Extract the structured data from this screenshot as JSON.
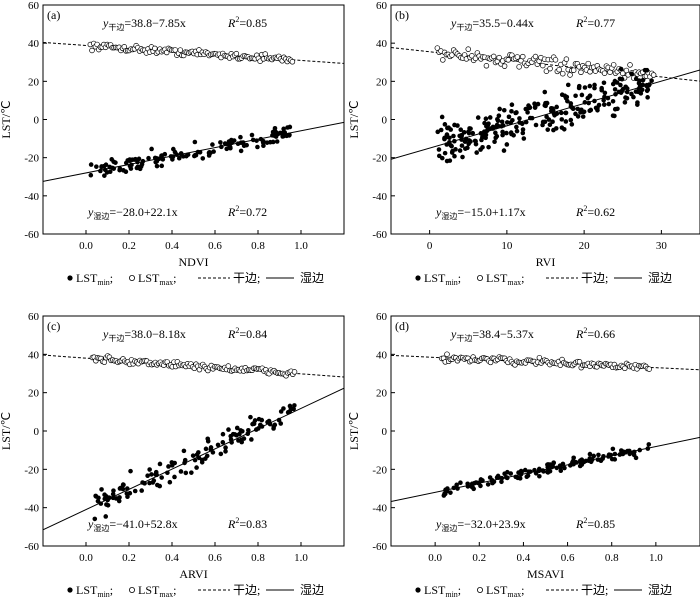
{
  "figure": {
    "legend_dry_label": "干边;",
    "legend_wet_label": "湿边",
    "legend_min_label": "LST",
    "legend_min_sub": "min",
    "legend_max_label": "LST",
    "legend_max_sub": "max",
    "legend_sep": ";",
    "ylabel": "LST/℃"
  },
  "chart_data": [
    {
      "panel": "(a)",
      "type": "scatter",
      "xlabel": "NDVI",
      "ylabel": "LST/℃",
      "xlim": [
        -0.2,
        1.2
      ],
      "ylim": [
        -60,
        60
      ],
      "xticks": [
        "0.0",
        "0.2",
        "0.4",
        "0.6",
        "0.8",
        "1.0"
      ],
      "xtick_values": [
        0,
        0.2,
        0.4,
        0.6,
        0.8,
        1.0
      ],
      "yticks": [
        "-60",
        "-40",
        "-20",
        "0",
        "20",
        "40",
        "60"
      ],
      "ytick_values": [
        -60,
        -40,
        -20,
        0,
        20,
        40,
        60
      ],
      "dry_edge": {
        "label": "干边",
        "intercept": 38.8,
        "slope": -7.85,
        "r2": 0.85,
        "eq_lhs": "y",
        "eq_sub": "干边",
        "eq_rhs": "=38.8−7.85x",
        "r2_text": "=0.85"
      },
      "wet_edge": {
        "label": "湿边",
        "intercept": -28.0,
        "slope": 22.1,
        "r2": 0.72,
        "eq_lhs": "y",
        "eq_sub": "湿边",
        "eq_rhs": "=−28.0+22.1x",
        "r2_text": "=0.72"
      },
      "lst_max_range": [
        0.02,
        0.96
      ],
      "lst_min_range": [
        0.02,
        0.96
      ],
      "lst_max_noise": 1.5,
      "lst_min_noise": 4
    },
    {
      "panel": "(b)",
      "type": "scatter",
      "xlabel": "RVI",
      "ylabel": "LST/℃",
      "xlim": [
        -5,
        35
      ],
      "ylim": [
        -60,
        60
      ],
      "xticks": [
        "0",
        "10",
        "20",
        "30"
      ],
      "xtick_values": [
        0,
        10,
        20,
        30
      ],
      "yticks": [
        "-60",
        "-40",
        "-20",
        "0",
        "20",
        "40",
        "60"
      ],
      "ytick_values": [
        -60,
        -40,
        -20,
        0,
        20,
        40,
        60
      ],
      "dry_edge": {
        "label": "干边",
        "intercept": 35.5,
        "slope": -0.44,
        "r2": 0.77,
        "eq_lhs": "y",
        "eq_sub": "干边",
        "eq_rhs": "=35.5−0.44x",
        "r2_text": "=0.77"
      },
      "wet_edge": {
        "label": "湿边",
        "intercept": -15.0,
        "slope": 1.17,
        "r2": 0.62,
        "eq_lhs": "y",
        "eq_sub": "湿边",
        "eq_rhs": "=−15.0+1.17x",
        "r2_text": "=0.62"
      },
      "lst_max_range": [
        1.0,
        29.0
      ],
      "lst_min_range": [
        1.0,
        29.0
      ],
      "lst_max_noise": 3,
      "lst_min_noise": 9
    },
    {
      "panel": "(c)",
      "type": "scatter",
      "xlabel": "ARVI",
      "ylabel": "LST/℃",
      "xlim": [
        -0.2,
        1.2
      ],
      "ylim": [
        -60,
        60
      ],
      "xticks": [
        "0.0",
        "0.2",
        "0.4",
        "0.6",
        "0.8",
        "1.0"
      ],
      "xtick_values": [
        0,
        0.2,
        0.4,
        0.6,
        0.8,
        1.0
      ],
      "yticks": [
        "-60",
        "-40",
        "-20",
        "0",
        "20",
        "40",
        "60"
      ],
      "ytick_values": [
        -60,
        -40,
        -20,
        0,
        20,
        40,
        60
      ],
      "dry_edge": {
        "label": "干边",
        "intercept": 38.0,
        "slope": -8.18,
        "r2": 0.84,
        "eq_lhs": "y",
        "eq_sub": "干边",
        "eq_rhs": "=38.0−8.18x",
        "r2_text": "=0.84"
      },
      "wet_edge": {
        "label": "湿边",
        "intercept": -41.0,
        "slope": 52.8,
        "r2": 0.83,
        "eq_lhs": "y",
        "eq_sub": "湿边",
        "eq_rhs": "=−41.0+52.8x",
        "r2_text": "=0.83"
      },
      "lst_max_range": [
        0.03,
        0.97
      ],
      "lst_min_range": [
        0.03,
        0.97
      ],
      "lst_max_noise": 1.5,
      "lst_min_noise": 6
    },
    {
      "panel": "(d)",
      "type": "scatter",
      "xlabel": "MSAVI",
      "ylabel": "LST/℃",
      "xlim": [
        -0.2,
        1.2
      ],
      "ylim": [
        -60,
        60
      ],
      "xticks": [
        "0.0",
        "0.2",
        "0.4",
        "0.6",
        "0.8",
        "1.0"
      ],
      "xtick_values": [
        0,
        0.2,
        0.4,
        0.6,
        0.8,
        1.0
      ],
      "yticks": [
        "-60",
        "-40",
        "-20",
        "0",
        "20",
        "40",
        "60"
      ],
      "ytick_values": [
        -60,
        -40,
        -20,
        0,
        20,
        40,
        60
      ],
      "dry_edge": {
        "label": "干边",
        "intercept": 38.4,
        "slope": -5.37,
        "r2": 0.66,
        "eq_lhs": "y",
        "eq_sub": "干边",
        "eq_rhs": "=38.4−5.37x",
        "r2_text": "=0.66"
      },
      "wet_edge": {
        "label": "湿边",
        "intercept": -32.0,
        "slope": 23.9,
        "r2": 0.85,
        "eq_lhs": "y",
        "eq_sub": "湿边",
        "eq_rhs": "=−32.0+23.9x",
        "r2_text": "=0.85"
      },
      "lst_max_range": [
        0.03,
        0.97
      ],
      "lst_min_range": [
        0.03,
        0.97
      ],
      "lst_max_noise": 1.5,
      "lst_min_noise": 2.5
    }
  ]
}
